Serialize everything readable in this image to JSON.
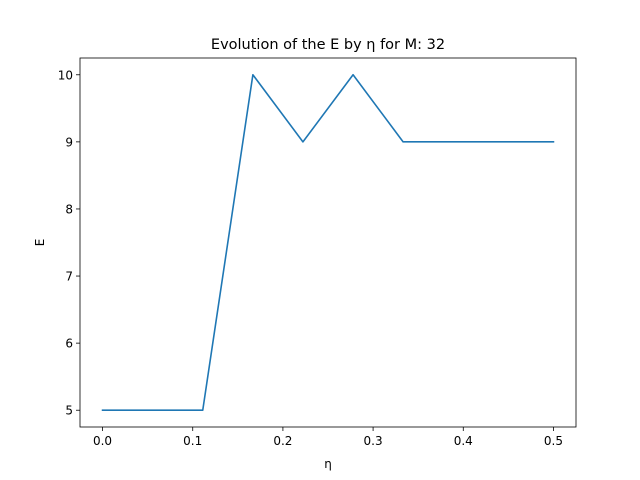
{
  "chart_data": {
    "type": "line",
    "title": "Evolution of the E by η for M: 32",
    "xlabel": "η",
    "ylabel": "E",
    "xlim": [
      -0.025,
      0.525
    ],
    "ylim": [
      4.75,
      10.25
    ],
    "xticks": [
      0.0,
      0.1,
      0.2,
      0.3,
      0.4,
      0.5
    ],
    "xtick_labels": [
      "0.0",
      "0.1",
      "0.2",
      "0.3",
      "0.4",
      "0.5"
    ],
    "yticks": [
      5,
      6,
      7,
      8,
      9,
      10
    ],
    "ytick_labels": [
      "5",
      "6",
      "7",
      "8",
      "9",
      "10"
    ],
    "grid": false,
    "series": [
      {
        "color": "#1f77b4",
        "x": [
          0.0,
          0.0556,
          0.1111,
          0.1667,
          0.2222,
          0.2778,
          0.3333,
          0.3889,
          0.4444,
          0.5
        ],
        "y": [
          5,
          5,
          5,
          10,
          9,
          10,
          9,
          9,
          9,
          9
        ]
      }
    ]
  }
}
